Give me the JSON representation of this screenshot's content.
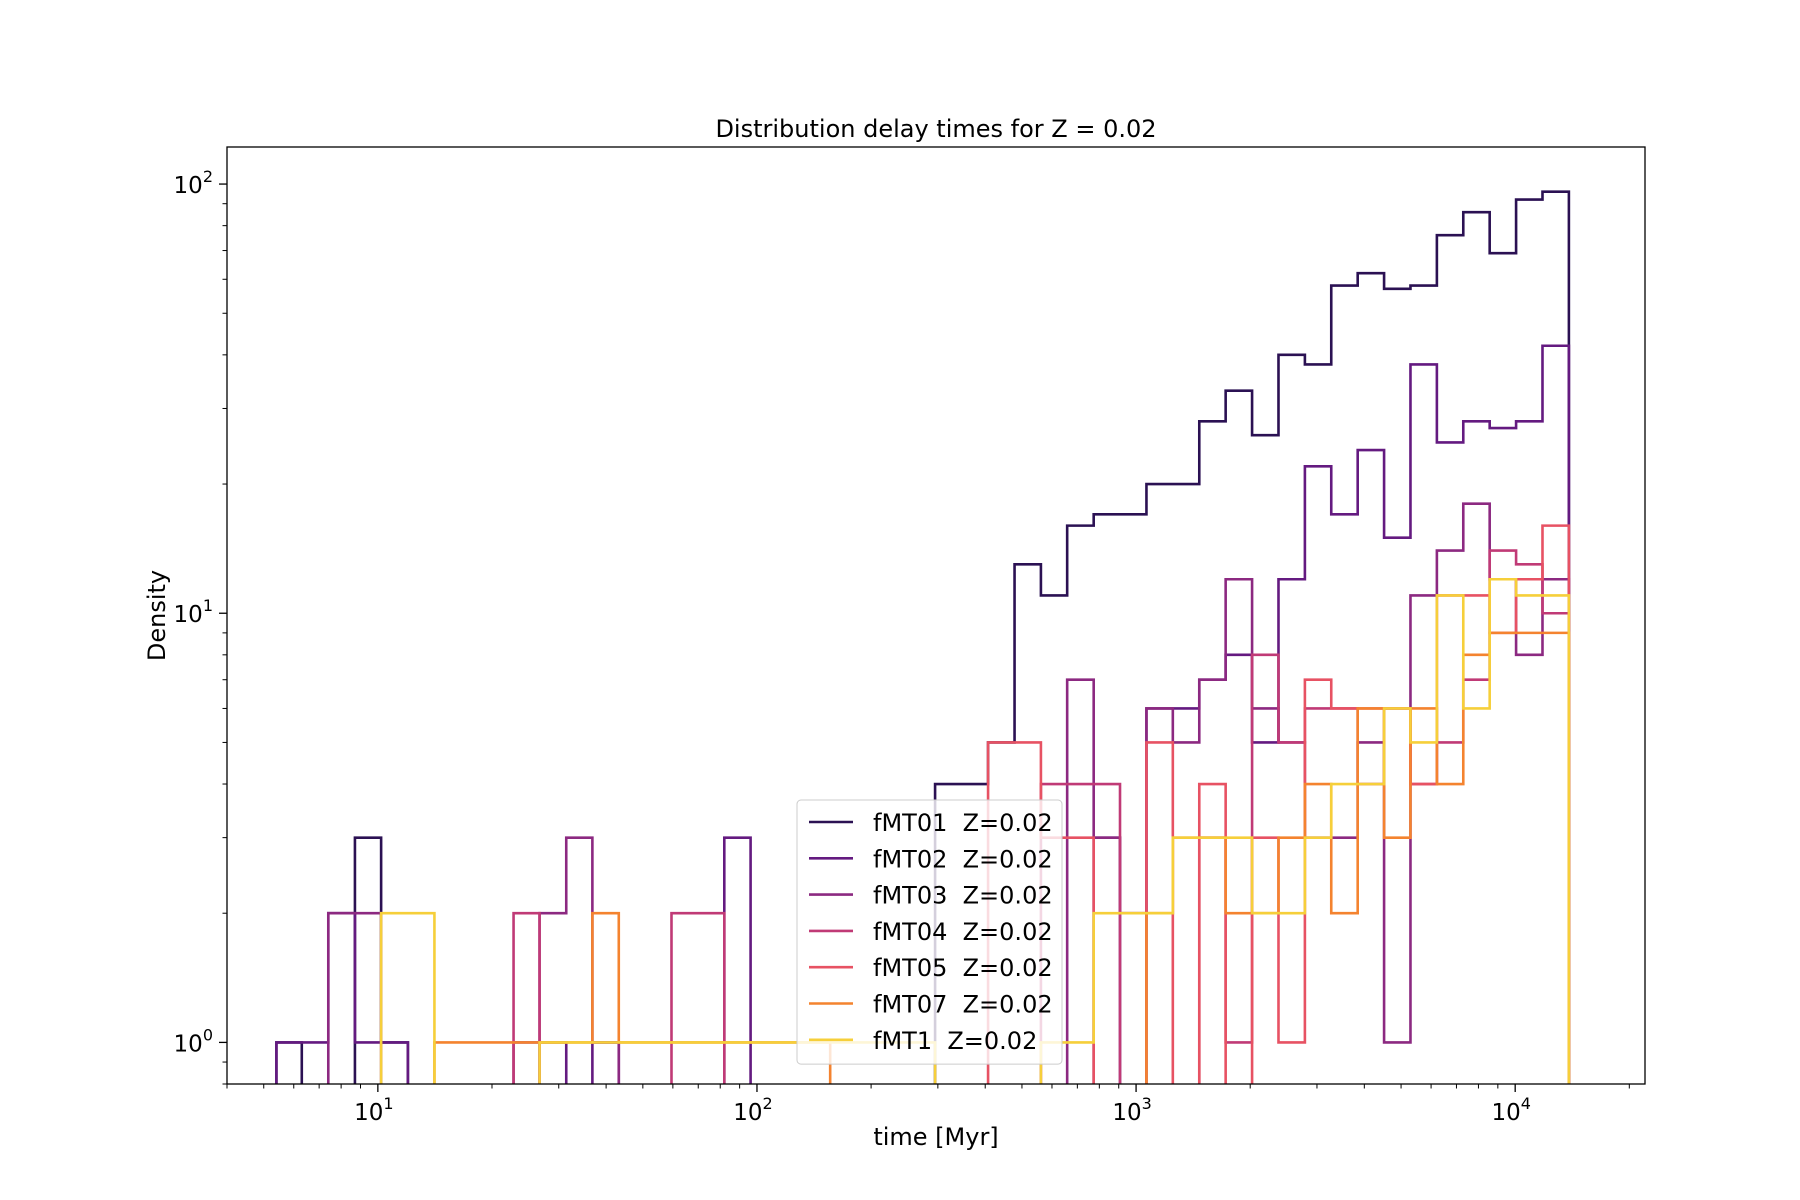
{
  "chart_data": {
    "type": "histogram-step",
    "title": "Distribution delay times for Z = 0.02",
    "xlabel": "time [Myr]",
    "ylabel": "Density",
    "xscale": "log",
    "yscale": "log",
    "xlim": [
      4.0,
      22000
    ],
    "ylim": [
      0.8,
      122
    ],
    "x_ticks": [
      {
        "value": 10,
        "base": "10",
        "exp": "1"
      },
      {
        "value": 100,
        "base": "10",
        "exp": "2"
      },
      {
        "value": 1000,
        "base": "10",
        "exp": "3"
      },
      {
        "value": 10000,
        "base": "10",
        "exp": "4"
      }
    ],
    "y_ticks": [
      {
        "value": 1,
        "base": "10",
        "exp": "0"
      },
      {
        "value": 10,
        "base": "10",
        "exp": "1"
      },
      {
        "value": 100,
        "base": "10",
        "exp": "2"
      }
    ],
    "bin_edges": [
      5.4,
      6.3,
      7.4,
      8.7,
      10.2,
      12.0,
      14.1,
      16.5,
      19.4,
      22.8,
      26.7,
      31.4,
      36.8,
      43.2,
      50.7,
      59.5,
      69.8,
      82.0,
      96.2,
      113,
      133,
      156,
      183,
      214,
      252,
      295,
      347,
      407,
      478,
      561,
      658,
      773,
      907,
      1065,
      1250,
      1468,
      1723,
      2023,
      2375,
      2788,
      3272,
      3842,
      4510,
      5294,
      6215,
      7296,
      8565,
      10055,
      11804,
      13857,
      15500
    ],
    "series": [
      {
        "name": "fMT01  Z=0.02",
        "color": "#2b1153",
        "values": [
          1,
          0,
          0,
          3,
          1,
          0,
          0,
          0,
          0,
          0,
          0,
          0,
          0,
          0,
          0,
          0,
          0,
          0,
          0,
          0,
          0,
          0,
          0,
          0,
          0,
          4,
          4,
          5,
          13,
          11,
          16,
          17,
          17,
          20,
          20,
          28,
          33,
          26,
          40,
          38,
          58,
          62,
          57,
          58,
          76,
          86,
          69,
          92,
          96,
          0
        ]
      },
      {
        "name": "fMT02  Z=0.02",
        "color": "#641a80",
        "values": [
          1,
          1,
          2,
          1,
          1,
          0,
          0,
          0,
          0,
          0,
          1,
          0,
          1,
          0,
          0,
          0,
          0,
          3,
          0,
          0,
          0,
          0,
          0,
          0,
          0,
          0,
          0,
          0,
          0,
          0,
          0,
          3,
          0,
          6,
          6,
          7,
          8,
          5,
          12,
          22,
          17,
          24,
          15,
          38,
          25,
          28,
          27,
          28,
          42,
          0
        ]
      },
      {
        "name": "fMT03  Z=0.02",
        "color": "#8c2981",
        "values": [
          0,
          0,
          2,
          2,
          0,
          0,
          0,
          0,
          0,
          1,
          2,
          3,
          1,
          0,
          0,
          0,
          0,
          0,
          0,
          0,
          0,
          0,
          0,
          0,
          0,
          0,
          0,
          0,
          0,
          0,
          7,
          3,
          2,
          6,
          5,
          7,
          12,
          6,
          5,
          3,
          3,
          5,
          1,
          11,
          14,
          18,
          12,
          8,
          12,
          0
        ]
      },
      {
        "name": "fMT04  Z=0.02",
        "color": "#c03a76",
        "values": [
          0,
          0,
          0,
          0,
          0,
          0,
          0,
          0,
          0,
          2,
          0,
          0,
          0,
          0,
          0,
          2,
          2,
          0,
          0,
          0,
          0,
          0,
          0,
          0,
          0,
          0,
          0,
          0,
          0,
          4,
          4,
          4,
          0,
          0,
          0,
          3,
          1,
          8,
          5,
          6,
          6,
          4,
          6,
          4,
          5,
          7,
          14,
          13,
          10,
          0
        ]
      },
      {
        "name": "fMT05  Z=0.02",
        "color": "#e75263",
        "values": [
          0,
          0,
          0,
          0,
          0,
          0,
          0,
          0,
          0,
          0,
          0,
          0,
          0,
          0,
          0,
          0,
          0,
          0,
          0,
          0,
          0,
          0,
          0,
          0,
          0,
          0,
          0,
          5,
          5,
          3,
          3,
          0,
          0,
          5,
          0,
          4,
          0,
          3,
          1,
          7,
          6,
          6,
          6,
          4,
          11,
          11,
          9,
          12,
          16,
          0
        ]
      },
      {
        "name": "fMT07  Z=0.02",
        "color": "#f4832f",
        "values": [
          0,
          0,
          0,
          0,
          0,
          0,
          1,
          1,
          1,
          1,
          1,
          1,
          2,
          1,
          1,
          1,
          1,
          1,
          1,
          1,
          1,
          0,
          0,
          0,
          0,
          0,
          0,
          0,
          0,
          0,
          0,
          0,
          0,
          2,
          3,
          3,
          2,
          2,
          3,
          4,
          2,
          6,
          3,
          6,
          4,
          8,
          9,
          9,
          9,
          0
        ]
      },
      {
        "name": "fMT1  Z=0.02",
        "color": "#f6cf3a",
        "values": [
          0,
          0,
          0,
          0,
          2,
          2,
          0,
          0,
          0,
          0,
          1,
          1,
          1,
          1,
          1,
          1,
          1,
          1,
          1,
          1,
          1,
          1,
          1,
          1,
          1,
          0,
          0,
          0,
          0,
          1,
          1,
          2,
          2,
          2,
          3,
          3,
          3,
          2,
          2,
          3,
          4,
          4,
          6,
          5,
          11,
          6,
          12,
          11,
          11,
          0
        ]
      }
    ],
    "legend_position": "lower center",
    "grid": false
  }
}
